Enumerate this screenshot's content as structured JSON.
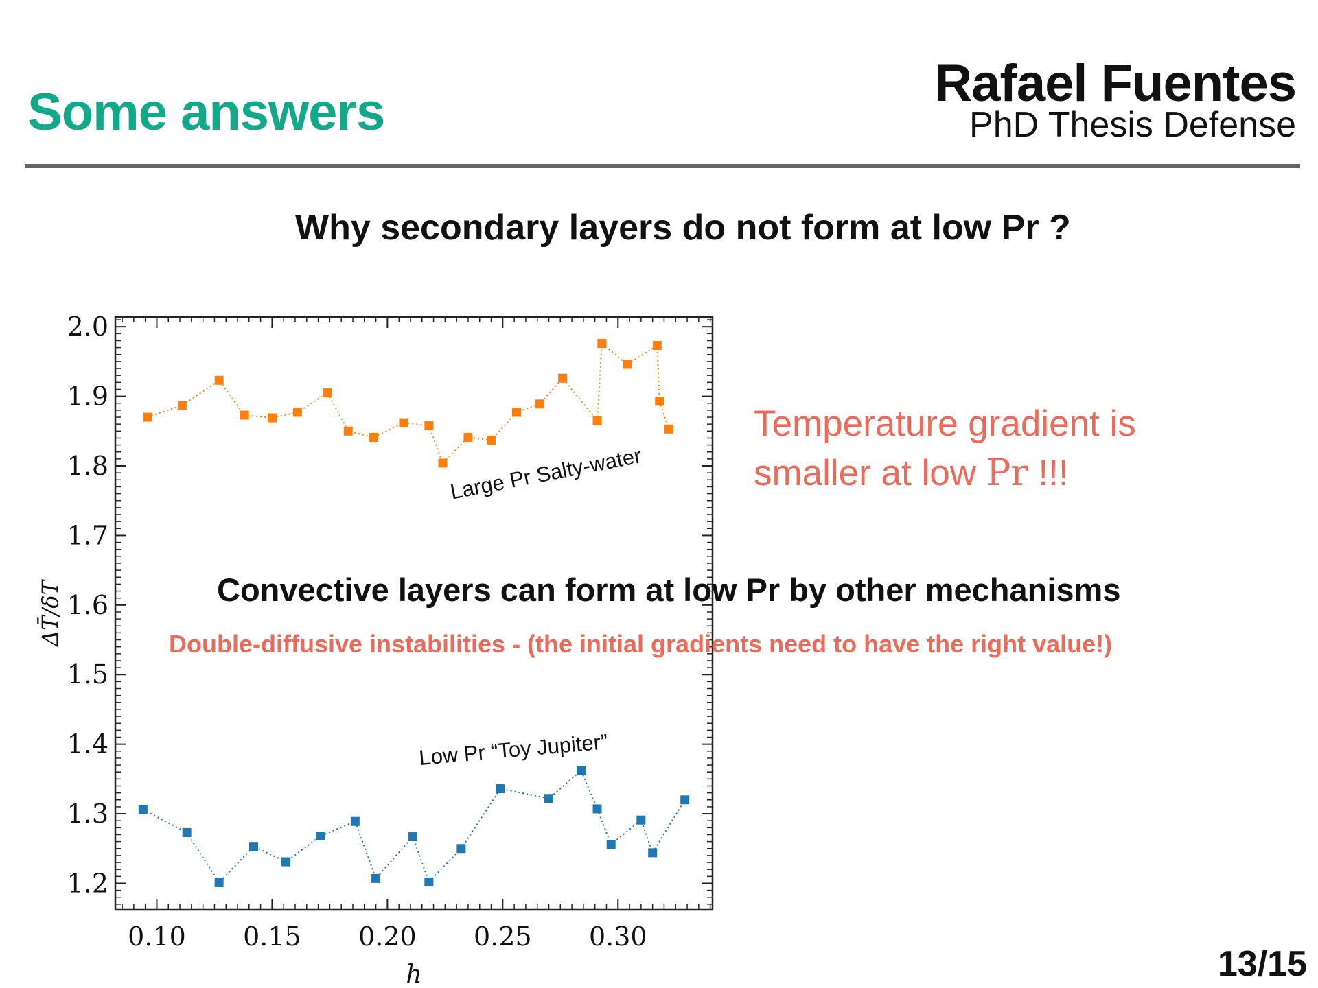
{
  "slide": {
    "section_title": "Some answers",
    "author": "Rafael Fuentes",
    "event": "PhD Thesis Defense",
    "question": "Why secondary layers do not form at low Pr ?",
    "note_right_line1": "Temperature gradient is",
    "note_right_line2_pre": "smaller at low ",
    "note_right_line2_pr": "Pr",
    "note_right_line2_post": " !!!",
    "overlay_main": "Convective layers can form at low Pr by other mechanisms",
    "overlay_sub": "Double-diffusive instabilities - (the initial gradients need to have the right value!)",
    "page_number": "13/15",
    "colors": {
      "accent": "#14a88a",
      "highlight": "#ee6a58",
      "orange_series": "#ff7f0e",
      "blue_series": "#1f77b4"
    }
  },
  "chart_data": {
    "type": "line",
    "xlabel": "h",
    "ylabel": "ΔT̄/δT",
    "xlim": [
      0.082,
      0.341
    ],
    "ylim": [
      1.162,
      2.014
    ],
    "xticks": [
      0.1,
      0.15,
      0.2,
      0.25,
      0.3
    ],
    "xtick_labels": [
      "0.10",
      "0.15",
      "0.20",
      "0.25",
      "0.30"
    ],
    "yticks": [
      1.2,
      1.3,
      1.4,
      1.5,
      1.6,
      1.7,
      1.8,
      1.9,
      2.0
    ],
    "ytick_labels": [
      "1.2",
      "1.3",
      "1.4",
      "1.5",
      "1.6",
      "1.7",
      "1.8",
      "1.9",
      "2.0"
    ],
    "series": [
      {
        "name": "Large Pr Salty-water",
        "color": "#ff7f0e",
        "x": [
          0.096,
          0.111,
          0.127,
          0.138,
          0.15,
          0.161,
          0.174,
          0.183,
          0.194,
          0.207,
          0.218,
          0.224,
          0.235,
          0.245,
          0.256,
          0.266,
          0.276,
          0.291,
          0.293,
          0.304,
          0.317,
          0.318,
          0.322
        ],
        "y": [
          1.87,
          1.887,
          1.923,
          1.873,
          1.869,
          1.877,
          1.905,
          1.85,
          1.841,
          1.862,
          1.858,
          1.804,
          1.841,
          1.837,
          1.877,
          1.889,
          1.926,
          1.865,
          1.976,
          1.946,
          1.973,
          1.893,
          1.853
        ]
      },
      {
        "name": "Low Pr “Toy Jupiter”",
        "color": "#1f77b4",
        "x": [
          0.094,
          0.113,
          0.127,
          0.142,
          0.156,
          0.171,
          0.186,
          0.195,
          0.211,
          0.218,
          0.232,
          0.249,
          0.27,
          0.284,
          0.291,
          0.297,
          0.31,
          0.315,
          0.329
        ],
        "y": [
          1.306,
          1.273,
          1.201,
          1.253,
          1.231,
          1.268,
          1.289,
          1.207,
          1.267,
          1.202,
          1.25,
          1.336,
          1.322,
          1.362,
          1.307,
          1.256,
          1.291,
          1.244,
          1.32
        ]
      }
    ],
    "annotations": [
      {
        "text": "Large Pr Salty-water",
        "series": 0
      },
      {
        "text": "Low Pr “Toy Jupiter”",
        "series": 1
      }
    ]
  }
}
